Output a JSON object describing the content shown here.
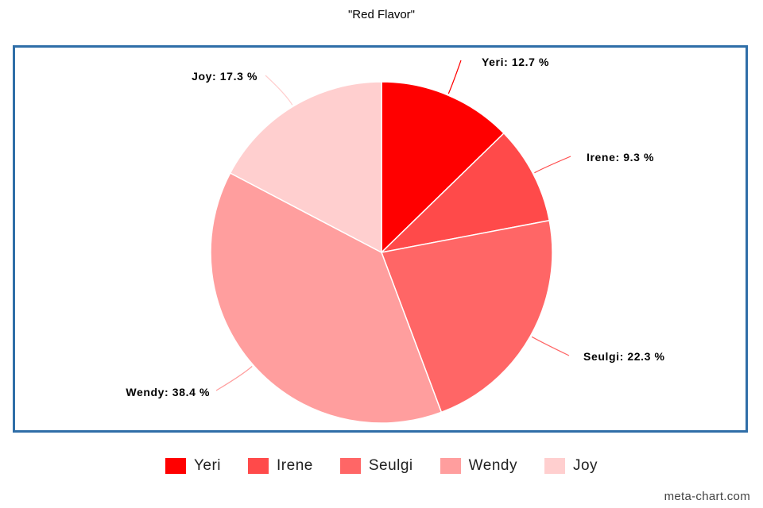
{
  "chart_data": {
    "type": "pie",
    "title": "\"Red Flavor\"",
    "categories": [
      "Yeri",
      "Irene",
      "Seulgi",
      "Wendy",
      "Joy"
    ],
    "values": [
      12.7,
      9.3,
      22.3,
      38.4,
      17.3
    ],
    "unit": "%",
    "colors": [
      "#ff0000",
      "#ff4a4a",
      "#ff6666",
      "#ff9e9e",
      "#ffcfcf"
    ],
    "labels": [
      "Yeri: 12.7 %",
      "Irene: 9.3 %",
      "Seulgi: 22.3 %",
      "Wendy: 38.4 %",
      "Joy: 17.3 %"
    ],
    "legend_position": "bottom"
  },
  "watermark": "meta-chart.com"
}
